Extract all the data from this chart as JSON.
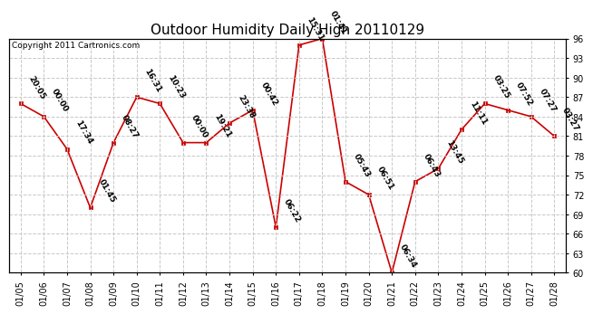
{
  "title": "Outdoor Humidity Daily High 20110129",
  "copyright": "Copyright 2011 Cartronics.com",
  "x_labels": [
    "01/05",
    "01/06",
    "01/07",
    "01/08",
    "01/09",
    "01/10",
    "01/11",
    "01/12",
    "01/13",
    "01/14",
    "01/15",
    "01/16",
    "01/17",
    "01/18",
    "01/19",
    "01/20",
    "01/21",
    "01/22",
    "01/23",
    "01/24",
    "01/25",
    "01/26",
    "01/27",
    "01/28"
  ],
  "y_values": [
    86,
    84,
    79,
    70,
    80,
    87,
    86,
    80,
    80,
    83,
    85,
    67,
    95,
    96,
    74,
    72,
    60,
    74,
    76,
    82,
    86,
    85,
    84,
    81
  ],
  "time_labels": [
    "20:05",
    "00:00",
    "17:34",
    "01:45",
    "08:27",
    "16:31",
    "10:23",
    "00:00",
    "19:21",
    "23:38",
    "00:42",
    "06:22",
    "15:31",
    "01:41",
    "05:43",
    "06:51",
    "06:34",
    "06:43",
    "13:45",
    "11:11",
    "03:25",
    "07:52",
    "07:27",
    "03:27"
  ],
  "ylim_min": 60,
  "ylim_max": 96,
  "yticks": [
    60,
    63,
    66,
    69,
    72,
    75,
    78,
    81,
    84,
    87,
    90,
    93,
    96
  ],
  "line_color": "#cc0000",
  "marker_color": "#cc0000",
  "bg_color": "#ffffff",
  "grid_color": "#c8c8c8",
  "title_fontsize": 11,
  "label_fontsize": 6.5,
  "tick_fontsize": 7,
  "copyright_fontsize": 6.5
}
